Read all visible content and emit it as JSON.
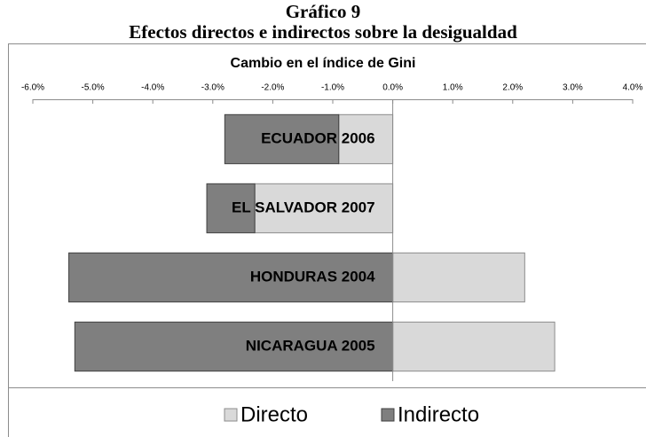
{
  "header": {
    "label": "Gráfico 9",
    "title": "Efectos directos e indirectos sobre la desigualdad"
  },
  "chart_data": {
    "type": "stacked_barh",
    "title": "Cambio en el índice de Gini",
    "categories": [
      "ECUADOR 2006",
      "EL SALVADOR 2007",
      "HONDURAS 2004",
      "NICARAGUA 2005"
    ],
    "series": [
      {
        "name": "Directo",
        "color": "#d9d9d9",
        "values": [
          -0.9,
          -2.3,
          2.2,
          2.7
        ]
      },
      {
        "name": "Indirecto",
        "color": "#7f7f7f",
        "values": [
          -1.9,
          -0.8,
          -5.4,
          -5.3
        ]
      }
    ],
    "xlim": [
      -6,
      4
    ],
    "xticks": [
      {
        "value": -6,
        "label": "-6.0%"
      },
      {
        "value": -5,
        "label": "-5.0%"
      },
      {
        "value": -4,
        "label": "-4.0%"
      },
      {
        "value": -3,
        "label": "-3.0%"
      },
      {
        "value": -2,
        "label": "-2.0%"
      },
      {
        "value": -1,
        "label": "-1.0%"
      },
      {
        "value": 0,
        "label": "0.0%"
      },
      {
        "value": 1,
        "label": "1.0%"
      },
      {
        "value": 2,
        "label": "2.0%"
      },
      {
        "value": 3,
        "label": "3.0%"
      },
      {
        "value": 4,
        "label": "4.0%"
      }
    ],
    "legend": "bottom"
  }
}
